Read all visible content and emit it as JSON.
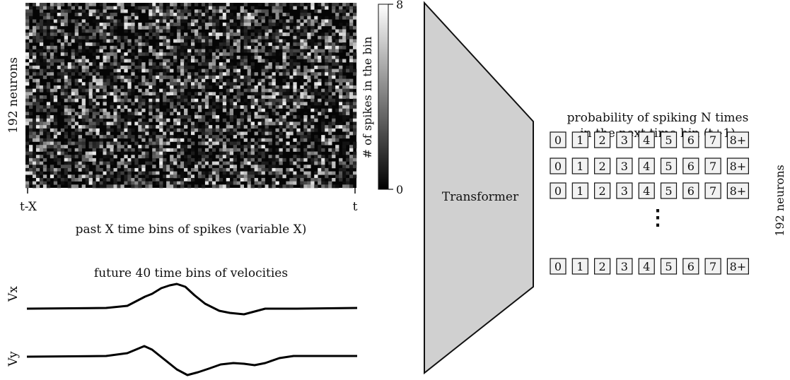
{
  "raster": {
    "ylabel": "192 neurons",
    "tick_start": "t-X",
    "tick_end": "t",
    "xlabel": "past X time bins of spikes (variable X)"
  },
  "colorbar": {
    "label": "# of spikes in the bin",
    "max_label": "8",
    "min_label": "0"
  },
  "velocities": {
    "title": "future 40 time bins of velocities",
    "vx_label": "Vx",
    "vy_label": "Vy"
  },
  "model": {
    "label": "Transformer"
  },
  "output": {
    "title_line1": "probability of spiking N times",
    "title_line2": "in the next time bin (t+1)",
    "bins": [
      "0",
      "1",
      "2",
      "3",
      "4",
      "5",
      "6",
      "7",
      "8+"
    ],
    "side_label": "192 neurons",
    "ellipsis": "⋮"
  }
}
